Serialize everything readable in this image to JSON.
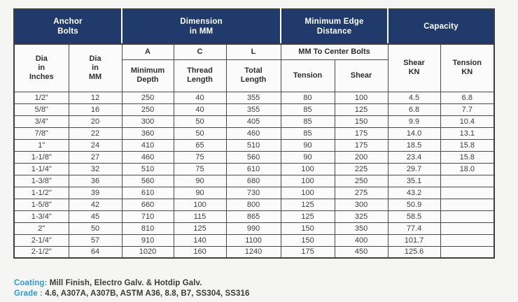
{
  "colors": {
    "header_bg": "#1f3a6b",
    "header_text": "#ffffff",
    "note_label_blue": "#2c9cd6",
    "grid_line": "#4a4a4a",
    "page_bg": "#f5f5f3"
  },
  "table": {
    "groups": [
      {
        "label": "Anchor\nBolts"
      },
      {
        "label": "Dimension\nin MM"
      },
      {
        "label": "Minimum Edge\nDistance"
      },
      {
        "label": "Capacity"
      }
    ],
    "subheaders": {
      "dia_inches": "Dia\nin\nInches",
      "dia_mm": "Dia\nin\nMM",
      "a_letter": "A",
      "a_label": "Minimum\nDepth",
      "c_letter": "C",
      "c_label": "Thread\nLength",
      "l_letter": "L",
      "l_label": "Total\nLength",
      "mm_center": "MM To Center Bolts",
      "tension": "Tension",
      "shear": "Shear",
      "shear_kn": "Shear\nKN",
      "tension_kn": "Tension\nKN"
    },
    "rows": [
      [
        "1/2\"",
        "12",
        "250",
        "40",
        "355",
        "80",
        "100",
        "4.5",
        "6.8"
      ],
      [
        "5/8\"",
        "16",
        "250",
        "40",
        "355",
        "85",
        "125",
        "6.8",
        "7.7"
      ],
      [
        "3/4\"",
        "20",
        "300",
        "50",
        "405",
        "85",
        "150",
        "9.9",
        "10.4"
      ],
      [
        "7/8\"",
        "22",
        "360",
        "50",
        "460",
        "85",
        "175",
        "14.0",
        "13.1"
      ],
      [
        "1\"",
        "24",
        "410",
        "65",
        "510",
        "90",
        "175",
        "18.5",
        "15.8"
      ],
      [
        "1-1/8\"",
        "27",
        "460",
        "75",
        "560",
        "90",
        "200",
        "23.4",
        "15.8"
      ],
      [
        "1-1/4\"",
        "32",
        "510",
        "75",
        "610",
        "100",
        "225",
        "29.7",
        "18.0"
      ],
      [
        "1-3/8\"",
        "36",
        "560",
        "90",
        "680",
        "100",
        "250",
        "35.1",
        ""
      ],
      [
        "1-1/2\"",
        "39",
        "610",
        "90",
        "730",
        "100",
        "275",
        "43.2",
        ""
      ],
      [
        "1-5/8\"",
        "42",
        "660",
        "100",
        "800",
        "125",
        "300",
        "50.9",
        ""
      ],
      [
        "1-3/4\"",
        "45",
        "710",
        "115",
        "865",
        "125",
        "325",
        "58.5",
        ""
      ],
      [
        "2\"",
        "50",
        "810",
        "125",
        "990",
        "150",
        "350",
        "77.4",
        ""
      ],
      [
        "2-1/4\"",
        "57",
        "910",
        "140",
        "1100",
        "150",
        "400",
        "101.7",
        ""
      ],
      [
        "2-1/2\"",
        "64",
        "1020",
        "160",
        "1240",
        "175",
        "450",
        "125.6",
        ""
      ]
    ]
  },
  "notes": {
    "coating_label": "Coating:",
    "coating_text": "Mill Finish, Electro Galv. & Hotdip Galv.",
    "grade_label": "Grade :",
    "grade_text": "4.6, A307A, A307B, ASTM A36, 8.8, B7, SS304, SS316"
  }
}
